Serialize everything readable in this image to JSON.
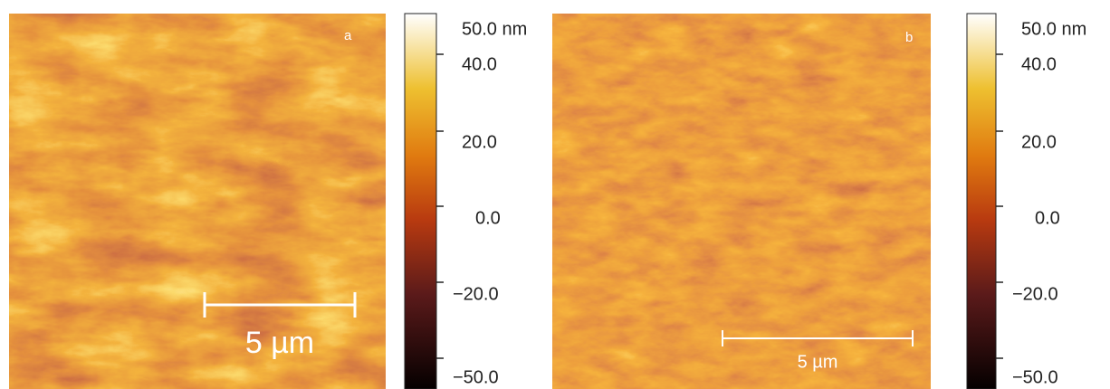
{
  "panels": [
    {
      "label": "a",
      "scale_bar": "5 µm",
      "colorbar_ticks": [
        "50.0 nm",
        "40.0",
        "20.0",
        "0.0",
        "−20.0",
        "−50.0"
      ]
    },
    {
      "label": "b",
      "scale_bar": "5 µm",
      "colorbar_ticks": [
        "50.0 nm",
        "40.0",
        "20.0",
        "0.0",
        "−20.0",
        "−50.0"
      ]
    }
  ]
}
